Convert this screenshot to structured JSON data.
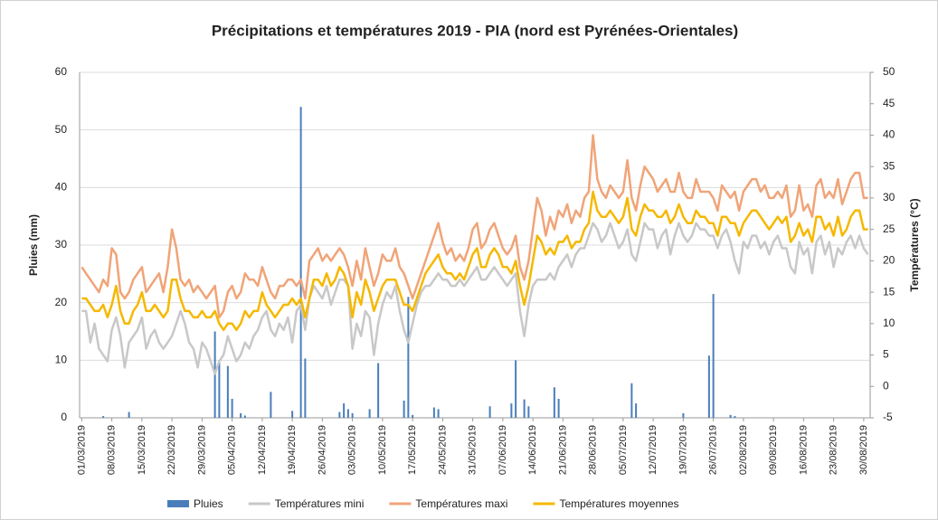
{
  "chart_data": {
    "type": "bar-line",
    "title": "Précipitations  et températures 2019 - PIA (nord est Pyrénées-Orientales)",
    "y_label": "Pluies (mm)",
    "y2_label": "Températures (°C)",
    "categories": [
      "01/03/2019",
      null,
      null,
      null,
      null,
      null,
      null,
      "08/03/2019",
      null,
      null,
      null,
      null,
      null,
      null,
      "15/03/2019",
      null,
      null,
      null,
      null,
      null,
      null,
      "22/03/2019",
      null,
      null,
      null,
      null,
      null,
      null,
      "29/03/2019",
      null,
      null,
      null,
      null,
      null,
      null,
      "05/04/2019",
      null,
      null,
      null,
      null,
      null,
      null,
      "12/04/2019",
      null,
      null,
      null,
      null,
      null,
      null,
      "19/04/2019",
      null,
      null,
      null,
      null,
      null,
      null,
      "26/04/2019",
      null,
      null,
      null,
      null,
      null,
      null,
      "03/05/2019",
      null,
      null,
      null,
      null,
      null,
      null,
      "10/05/2019",
      null,
      null,
      null,
      null,
      null,
      null,
      "17/05/2019",
      null,
      null,
      null,
      null,
      null,
      null,
      "24/05/2019",
      null,
      null,
      null,
      null,
      null,
      null,
      "31/05/2019",
      null,
      null,
      null,
      null,
      null,
      null,
      "07/06/2019",
      null,
      null,
      null,
      null,
      null,
      null,
      "14/06/2019",
      null,
      null,
      null,
      null,
      null,
      null,
      "21/06/2019",
      null,
      null,
      null,
      null,
      null,
      null,
      "28/06/2019",
      null,
      null,
      null,
      null,
      null,
      null,
      "05/07/2019",
      null,
      null,
      null,
      null,
      null,
      null,
      "12/07/2019",
      null,
      null,
      null,
      null,
      null,
      null,
      "19/07/2019",
      null,
      null,
      null,
      null,
      null,
      null,
      "26/07/2019",
      null,
      null,
      null,
      null,
      null,
      null,
      "02/08/2019",
      null,
      null,
      null,
      null,
      null,
      null,
      "09/08/2019",
      null,
      null,
      null,
      null,
      null,
      null,
      "16/08/2019",
      null,
      null,
      null,
      null,
      null,
      null,
      "23/08/2019",
      null,
      null,
      null,
      null,
      null,
      null,
      "30/08/2019",
      null
    ],
    "series": [
      {
        "name": "Pluies",
        "kind": "bar",
        "axis": "y",
        "color": "#4a7ebb",
        "values": [
          0,
          0,
          0,
          0,
          0,
          0.3,
          0,
          0,
          0,
          0,
          0,
          1,
          0,
          0,
          0,
          0,
          0,
          0,
          0,
          0,
          0,
          0,
          0,
          0,
          0,
          0,
          0,
          0,
          0,
          0,
          0,
          15,
          10,
          0,
          9,
          3.3,
          0,
          0.8,
          0.4,
          0,
          0,
          0,
          0,
          0,
          4.5,
          0,
          0,
          0,
          0,
          1.2,
          0,
          54,
          10.3,
          0,
          0,
          0,
          0,
          0,
          0,
          0,
          1,
          2.5,
          1.5,
          0.8,
          0,
          0,
          0,
          1.5,
          0,
          9.5,
          0,
          0,
          0,
          0,
          0,
          3,
          21,
          0.5,
          0,
          0,
          0,
          0,
          1.8,
          1.5,
          0,
          0,
          0,
          0,
          0,
          0,
          0,
          0,
          0,
          0,
          0,
          2,
          0,
          0,
          0,
          0,
          2.5,
          10,
          0,
          3.2,
          2,
          0,
          0,
          0,
          0,
          0,
          5.3,
          3.3,
          0,
          0,
          0,
          0,
          0,
          0,
          0,
          0,
          0,
          0,
          0,
          0,
          0,
          0,
          0,
          0,
          6,
          2.5,
          0,
          0,
          0,
          0,
          0,
          0,
          0,
          0,
          0,
          0,
          0.8,
          0,
          0,
          0,
          0,
          0,
          10.8,
          21.5,
          0,
          0,
          0,
          0.5,
          0.3,
          0,
          0,
          0,
          0,
          0,
          0,
          0,
          0,
          0,
          0,
          0,
          0,
          0,
          0,
          0,
          0,
          0,
          0,
          0,
          0,
          0,
          0,
          0,
          0,
          0,
          0,
          0,
          0,
          0,
          0,
          0
        ]
      },
      {
        "name": "Températures mini",
        "kind": "line",
        "axis": "y2",
        "color": "#c8c8c8",
        "values": [
          12,
          12,
          7,
          10,
          6,
          5,
          4,
          9,
          11,
          8,
          3,
          7,
          8,
          9,
          11,
          6,
          8,
          9,
          7,
          6,
          7,
          8,
          10,
          12,
          10,
          7,
          6,
          3,
          7,
          6,
          4,
          2,
          4,
          5,
          8,
          6,
          4,
          5,
          7,
          6,
          8,
          9,
          11,
          12,
          9,
          8,
          10,
          9,
          11,
          7,
          12,
          13,
          9,
          14,
          16,
          15,
          14,
          16,
          13,
          15,
          17,
          17,
          16,
          6,
          10,
          8,
          12,
          11,
          5,
          10,
          13,
          15,
          14,
          16,
          12,
          9,
          7,
          10,
          13,
          15,
          16,
          16,
          17,
          18,
          17,
          17,
          16,
          16,
          17,
          16,
          17,
          18,
          19,
          17,
          17,
          18,
          19,
          18,
          17,
          16,
          17,
          18,
          12,
          8,
          13,
          16,
          17,
          17,
          17,
          18,
          17,
          19,
          20,
          21,
          19,
          21,
          22,
          22,
          24,
          26,
          25,
          23,
          24,
          26,
          24,
          22,
          23,
          25,
          21,
          20,
          23,
          26,
          25,
          25,
          22,
          24,
          25,
          21,
          24,
          26,
          24,
          23,
          24,
          26,
          25,
          25,
          24,
          24,
          22,
          24,
          25,
          23,
          20,
          18,
          23,
          22,
          24,
          24,
          22,
          23,
          21,
          23,
          24,
          22,
          22,
          19,
          18,
          23,
          21,
          22,
          18,
          23,
          24,
          21,
          23,
          19,
          22,
          21,
          23,
          24,
          22,
          24,
          22,
          21
        ]
      },
      {
        "name": "Températures maxi",
        "kind": "line",
        "axis": "y2",
        "color": "#f0a478",
        "values": [
          19,
          18,
          17,
          16,
          15,
          17,
          16,
          22,
          21,
          15,
          14,
          15,
          17,
          18,
          19,
          15,
          16,
          17,
          18,
          15,
          19,
          25,
          22,
          17,
          16,
          17,
          15,
          16,
          15,
          14,
          15,
          16,
          11,
          12,
          15,
          16,
          14,
          15,
          18,
          17,
          17,
          16,
          19,
          17,
          15,
          14,
          16,
          16,
          17,
          17,
          16,
          17,
          14,
          20,
          21,
          22,
          20,
          21,
          20,
          21,
          22,
          21,
          19,
          16,
          20,
          17,
          22,
          19,
          16,
          18,
          21,
          20,
          20,
          22,
          19,
          18,
          16,
          14,
          16,
          18,
          20,
          22,
          24,
          26,
          23,
          21,
          22,
          20,
          21,
          20,
          22,
          25,
          26,
          22,
          23,
          25,
          26,
          24,
          22,
          21,
          22,
          24,
          19,
          17,
          20,
          25,
          30,
          28,
          24,
          27,
          25,
          28,
          27,
          29,
          26,
          28,
          27,
          30,
          31,
          40,
          33,
          31,
          30,
          32,
          31,
          30,
          31,
          36,
          30,
          28,
          32,
          35,
          34,
          33,
          31,
          32,
          33,
          31,
          31,
          34,
          31,
          30,
          30,
          33,
          31,
          31,
          31,
          30,
          28,
          32,
          31,
          30,
          31,
          28,
          31,
          32,
          33,
          33,
          31,
          32,
          30,
          30,
          31,
          30,
          32,
          27,
          28,
          32,
          28,
          29,
          27,
          32,
          33,
          30,
          31,
          30,
          33,
          29,
          31,
          33,
          34,
          34,
          30,
          30
        ]
      },
      {
        "name": "Températures moyennes",
        "kind": "line",
        "axis": "y2",
        "color": "#f5b800",
        "values": [
          14,
          14,
          13,
          12,
          12,
          13,
          11,
          13,
          16,
          12,
          10,
          10,
          12,
          13,
          15,
          12,
          12,
          13,
          12,
          11,
          12,
          17,
          17,
          14,
          12,
          12,
          11,
          11,
          12,
          11,
          11,
          12,
          10,
          9,
          10,
          10,
          9,
          10,
          12,
          11,
          12,
          12,
          15,
          13,
          12,
          11,
          12,
          13,
          13,
          14,
          13,
          14,
          11,
          14,
          17,
          17,
          16,
          18,
          16,
          17,
          19,
          18,
          16,
          11,
          15,
          13,
          17,
          15,
          12,
          14,
          16,
          17,
          17,
          17,
          15,
          13,
          13,
          12,
          14,
          16,
          18,
          19,
          20,
          21,
          19,
          18,
          18,
          17,
          18,
          17,
          19,
          21,
          22,
          19,
          19,
          21,
          22,
          21,
          19,
          19,
          18,
          20,
          16,
          13,
          16,
          20,
          24,
          23,
          21,
          22,
          21,
          23,
          23,
          24,
          22,
          23,
          23,
          25,
          26,
          31,
          28,
          27,
          27,
          28,
          27,
          26,
          27,
          30,
          25,
          24,
          27,
          29,
          28,
          28,
          27,
          27,
          28,
          26,
          27,
          29,
          27,
          26,
          26,
          28,
          27,
          27,
          26,
          26,
          24,
          27,
          27,
          26,
          26,
          24,
          26,
          27,
          28,
          28,
          27,
          26,
          25,
          26,
          27,
          26,
          27,
          23,
          24,
          26,
          24,
          25,
          23,
          27,
          27,
          25,
          26,
          24,
          27,
          24,
          25,
          27,
          28,
          28,
          25,
          25
        ]
      }
    ],
    "ylim": [
      0,
      60
    ],
    "yticks": [
      0,
      10,
      20,
      30,
      40,
      50,
      60
    ],
    "y2lim": [
      -5,
      50
    ],
    "y2ticks": [
      -5,
      0,
      5,
      10,
      15,
      20,
      25,
      30,
      35,
      40,
      45,
      50
    ],
    "grid": true,
    "legend": "bottom"
  }
}
